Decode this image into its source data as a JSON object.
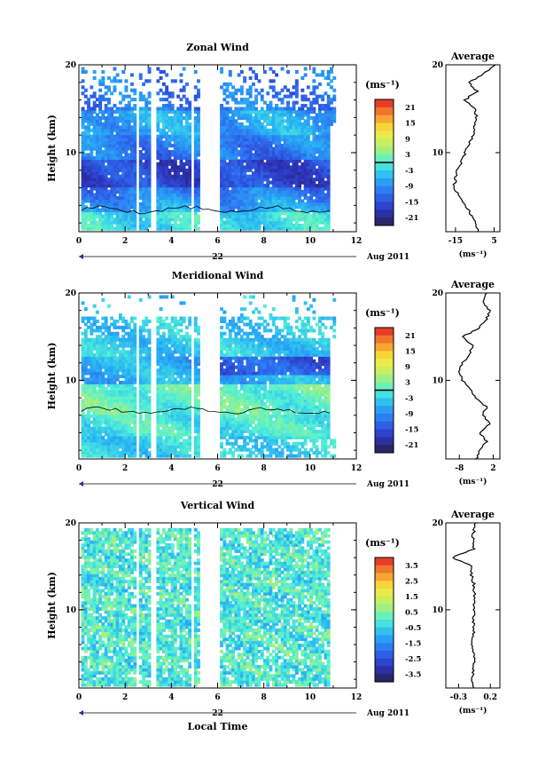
{
  "chart_data": [
    {
      "type": "heatmap",
      "title": "Zonal Wind",
      "ylabel": "Height (km)",
      "xlabel": "",
      "x_ticks": [
        "0",
        "2",
        "4",
        "6",
        "8",
        "10",
        "12"
      ],
      "y_ticks": [
        "10",
        "20"
      ],
      "xlim": [
        0,
        12
      ],
      "ylim": [
        1,
        20
      ],
      "date_label": "22",
      "month_label": "Aug 2011",
      "units_label": "(ms⁻¹)",
      "colorbar": {
        "ticks": [
          "21",
          "15",
          "9",
          "3",
          "-3",
          "-9",
          "-15",
          "-21"
        ],
        "range": [
          -24,
          24
        ]
      },
      "data_gaps_hours": [
        [
          2.4,
          2.6
        ],
        [
          3.1,
          3.3
        ],
        [
          4.5,
          4.6
        ],
        [
          4.85,
          4.95
        ],
        [
          5.2,
          6.0
        ]
      ],
      "profile": {
        "title": "Average",
        "x_ticks": [
          "-15",
          "5"
        ],
        "xlim": [
          -20,
          8
        ],
        "xlabel": "(ms⁻¹)",
        "y_ticks": [
          "10",
          "20"
        ],
        "heights_km": [
          1,
          2,
          3,
          4,
          5,
          6,
          7,
          8,
          9,
          10,
          11,
          12,
          13,
          14,
          15,
          16,
          17,
          18,
          19,
          20
        ],
        "values": [
          -3,
          -5,
          -7,
          -10,
          -13,
          -16,
          -15,
          -14,
          -12,
          -10,
          -8,
          -6,
          -5,
          -4,
          -5,
          -10,
          -4,
          -8,
          0,
          6
        ]
      }
    },
    {
      "type": "heatmap",
      "title": "Meridional Wind",
      "ylabel": "Height (km)",
      "xlabel": "",
      "x_ticks": [
        "0",
        "2",
        "4",
        "6",
        "8",
        "10",
        "12"
      ],
      "y_ticks": [
        "10",
        "20"
      ],
      "xlim": [
        0,
        12
      ],
      "ylim": [
        1,
        20
      ],
      "date_label": "22",
      "month_label": "Aug 2011",
      "units_label": "(ms⁻¹)",
      "colorbar": {
        "ticks": [
          "21",
          "15",
          "9",
          "3",
          "-3",
          "-9",
          "-15",
          "-21"
        ],
        "range": [
          -24,
          24
        ]
      },
      "data_gaps_hours": [
        [
          2.4,
          2.6
        ],
        [
          3.1,
          3.3
        ],
        [
          4.5,
          4.6
        ],
        [
          4.85,
          4.95
        ],
        [
          5.2,
          6.0
        ]
      ],
      "profile": {
        "title": "Average",
        "x_ticks": [
          "-8",
          "2"
        ],
        "xlim": [
          -12,
          4
        ],
        "xlabel": "(ms⁻¹)",
        "y_ticks": [
          "10",
          "20"
        ],
        "heights_km": [
          1,
          2,
          3,
          4,
          5,
          6,
          7,
          8,
          9,
          10,
          11,
          12,
          13,
          14,
          15,
          16,
          17,
          18,
          19,
          20
        ],
        "values": [
          -3,
          -2,
          0,
          -2,
          1,
          -1,
          0,
          -3,
          -5,
          -7,
          -8,
          -7,
          -5,
          -4,
          -7,
          -2,
          0,
          1,
          -1,
          0
        ]
      }
    },
    {
      "type": "heatmap",
      "title": "Vertical Wind",
      "ylabel": "Height (km)",
      "xlabel": "Local Time",
      "x_ticks": [
        "0",
        "2",
        "4",
        "6",
        "8",
        "10",
        "12"
      ],
      "y_ticks": [
        "10",
        "20"
      ],
      "xlim": [
        0,
        12
      ],
      "ylim": [
        1,
        20
      ],
      "date_label": "22",
      "month_label": "Aug 2011",
      "units_label": "(ms⁻¹)",
      "colorbar": {
        "ticks": [
          "3.5",
          "2.5",
          "1.5",
          "0.5",
          "-0.5",
          "-1.5",
          "-2.5",
          "-3.5"
        ],
        "range": [
          -4,
          4
        ]
      },
      "data_gaps_hours": [
        [
          2.4,
          2.6
        ],
        [
          3.1,
          3.3
        ],
        [
          4.5,
          4.6
        ],
        [
          4.85,
          4.95
        ],
        [
          5.2,
          6.0
        ]
      ],
      "profile": {
        "title": "Average",
        "x_ticks": [
          "-0.3",
          "0.2"
        ],
        "xlim": [
          -0.5,
          0.35
        ],
        "xlabel": "(ms⁻¹)",
        "y_ticks": [
          "10",
          "20"
        ],
        "heights_km": [
          1,
          2,
          3,
          4,
          5,
          6,
          7,
          8,
          9,
          10,
          11,
          12,
          13,
          14,
          15,
          16,
          17,
          18,
          19,
          20
        ],
        "values": [
          -0.05,
          -0.08,
          -0.07,
          -0.05,
          -0.06,
          -0.08,
          -0.06,
          -0.06,
          -0.07,
          -0.05,
          -0.06,
          -0.05,
          -0.06,
          -0.1,
          -0.08,
          -0.4,
          -0.06,
          -0.08,
          -0.06,
          -0.05
        ]
      }
    }
  ]
}
